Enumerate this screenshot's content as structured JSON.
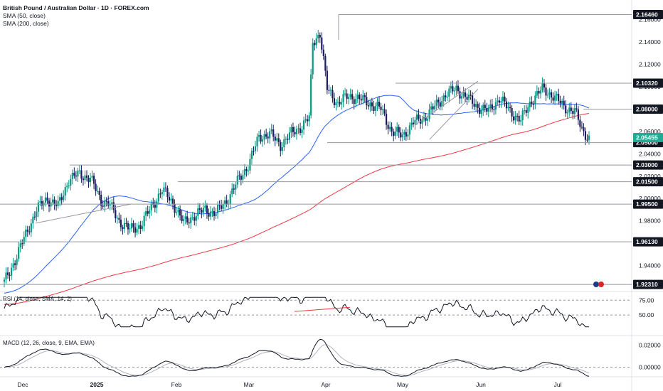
{
  "header": {
    "title": "British Pound / Australian Dollar · 1D · FOREX.com",
    "sma50_label": "SMA (50, close)",
    "sma200_label": "SMA (200, close)"
  },
  "indicators": {
    "rsi_label": "RSI (14, close, SMA, 14, 2)",
    "macd_label": "MACD (12, 26, close, 9, EMA, EMA)"
  },
  "colors": {
    "up": "#089981",
    "down": "#1c1c5e",
    "sma50": "#2962ff",
    "sma200": "#f23645",
    "price_tag": "#22ab94",
    "level_line": "#9598a1",
    "tag_bg": "#131722"
  },
  "chart_data": {
    "type": "candlestick",
    "title": "British Pound / Australian Dollar · 1D · FOREX.com",
    "x_labels": [
      "Dec",
      "2025",
      "Feb",
      "Mar",
      "Apr",
      "May",
      "Jun",
      "Jul"
    ],
    "y_ticks": [
      "2.16000",
      "2.14000",
      "2.12000",
      "2.10000",
      "2.08000",
      "2.06000",
      "2.04000",
      "2.02000",
      "2.00000",
      "1.98000",
      "1.96000",
      "1.94000"
    ],
    "ylim": [
      1.92,
      2.17
    ],
    "last_price": "2.05455",
    "levels": [
      "2.16460",
      "2.10320",
      "2.08000",
      "2.05000",
      "2.03000",
      "2.01500",
      "1.99500",
      "1.96130",
      "1.92310"
    ],
    "rsi": {
      "label": "RSI (14, close, SMA, 14, 2)",
      "ticks": [
        "75.00",
        "50.00"
      ],
      "ylim": [
        20,
        85
      ]
    },
    "macd": {
      "label": "MACD (12, 26, close, 9, EMA, EMA)",
      "ticks": [
        "0.02000",
        "0.00000"
      ],
      "ylim": [
        -0.006,
        0.026
      ]
    }
  }
}
